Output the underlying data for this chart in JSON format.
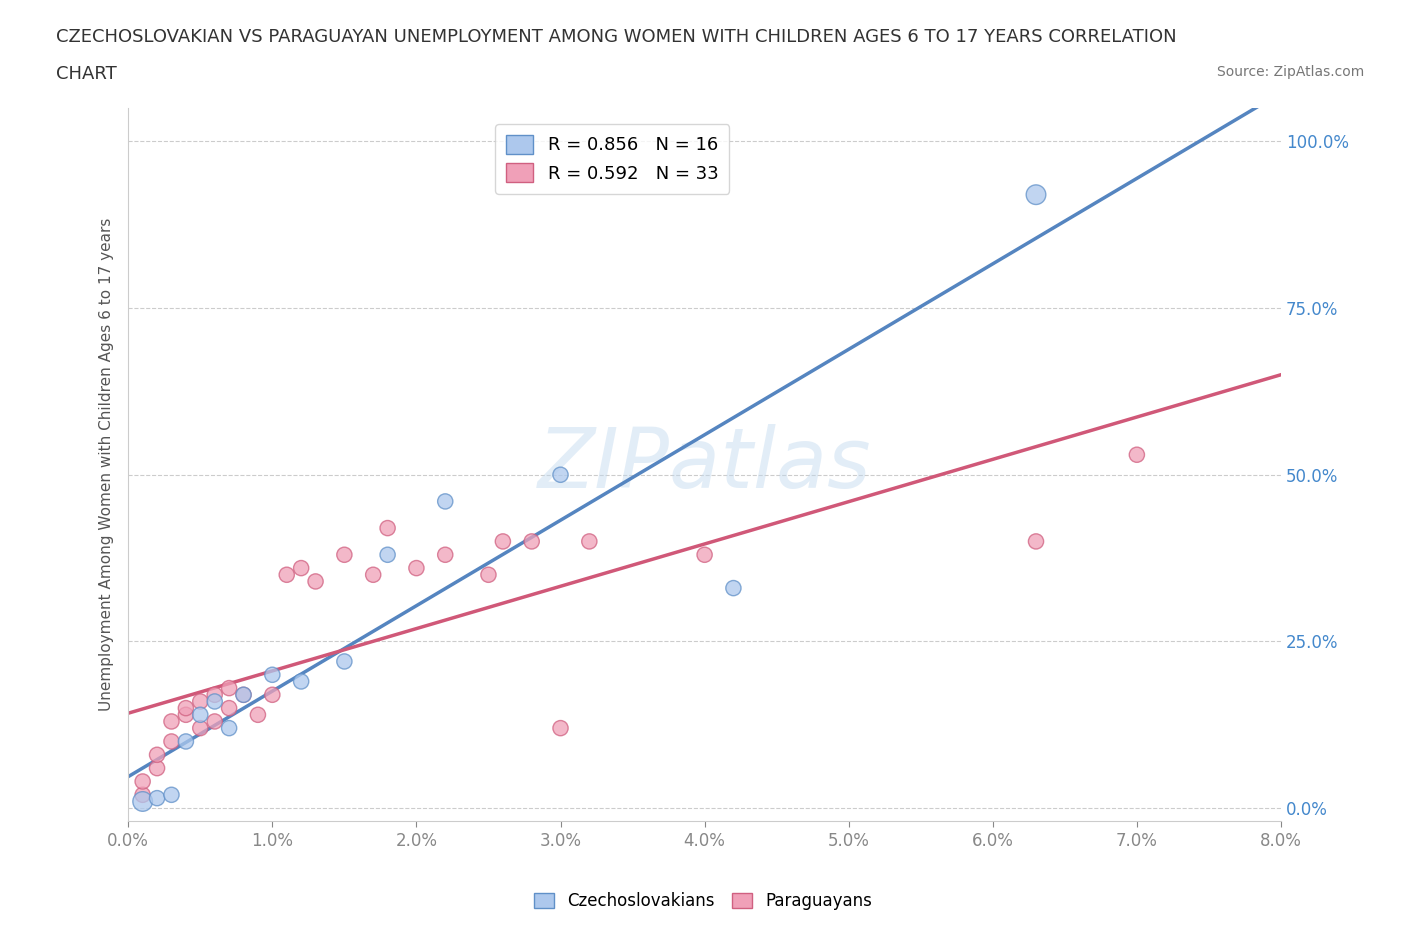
{
  "title_line1": "CZECHOSLOVAKIAN VS PARAGUAYAN UNEMPLOYMENT AMONG WOMEN WITH CHILDREN AGES 6 TO 17 YEARS CORRELATION",
  "title_line2": "CHART",
  "source_text": "Source: ZipAtlas.com",
  "ylabel": "Unemployment Among Women with Children Ages 6 to 17 years",
  "xlim": [
    0.0,
    0.08
  ],
  "ylim": [
    -0.02,
    1.05
  ],
  "xticks": [
    0.0,
    0.01,
    0.02,
    0.03,
    0.04,
    0.05,
    0.06,
    0.07,
    0.08
  ],
  "xticklabels": [
    "0.0%",
    "1.0%",
    "2.0%",
    "3.0%",
    "4.0%",
    "5.0%",
    "6.0%",
    "7.0%",
    "8.0%"
  ],
  "yticks": [
    0.0,
    0.25,
    0.5,
    0.75,
    1.0
  ],
  "yticklabels": [
    "0.0%",
    "25.0%",
    "50.0%",
    "75.0%",
    "100.0%"
  ],
  "blue_color": "#adc8ed",
  "blue_edge": "#6090c8",
  "pink_color": "#f0a0b8",
  "pink_edge": "#d06080",
  "blue_line_color": "#5585c0",
  "pink_line_color": "#d05878",
  "legend_R_blue": "R = 0.856",
  "legend_N_blue": "N = 16",
  "legend_R_pink": "R = 0.592",
  "legend_N_pink": "N = 33",
  "watermark": "ZIPatlas",
  "background_color": "#ffffff",
  "grid_color": "#cccccc",
  "blue_scatter_x": [
    0.001,
    0.002,
    0.003,
    0.004,
    0.005,
    0.006,
    0.007,
    0.008,
    0.01,
    0.012,
    0.015,
    0.018,
    0.022,
    0.03,
    0.042,
    0.063
  ],
  "blue_scatter_y": [
    0.01,
    0.015,
    0.02,
    0.1,
    0.14,
    0.16,
    0.12,
    0.17,
    0.2,
    0.19,
    0.22,
    0.38,
    0.46,
    0.5,
    0.33,
    0.92
  ],
  "pink_scatter_x": [
    0.001,
    0.001,
    0.002,
    0.002,
    0.003,
    0.003,
    0.004,
    0.004,
    0.005,
    0.005,
    0.006,
    0.006,
    0.007,
    0.007,
    0.008,
    0.009,
    0.01,
    0.011,
    0.012,
    0.013,
    0.015,
    0.017,
    0.018,
    0.02,
    0.022,
    0.025,
    0.026,
    0.028,
    0.03,
    0.032,
    0.04,
    0.063,
    0.07
  ],
  "pink_scatter_y": [
    0.02,
    0.04,
    0.06,
    0.08,
    0.1,
    0.13,
    0.14,
    0.15,
    0.12,
    0.16,
    0.13,
    0.17,
    0.15,
    0.18,
    0.17,
    0.14,
    0.17,
    0.35,
    0.36,
    0.34,
    0.38,
    0.35,
    0.42,
    0.36,
    0.38,
    0.35,
    0.4,
    0.4,
    0.12,
    0.4,
    0.38,
    0.4,
    0.53
  ],
  "blue_scatter_sizes": [
    200,
    120,
    120,
    120,
    120,
    120,
    120,
    120,
    120,
    120,
    120,
    120,
    120,
    120,
    120,
    200
  ],
  "pink_scatter_sizes": [
    120,
    120,
    120,
    120,
    120,
    120,
    120,
    120,
    120,
    120,
    120,
    120,
    120,
    120,
    120,
    120,
    120,
    120,
    120,
    120,
    120,
    120,
    120,
    120,
    120,
    120,
    120,
    120,
    120,
    120,
    120,
    120,
    120
  ]
}
